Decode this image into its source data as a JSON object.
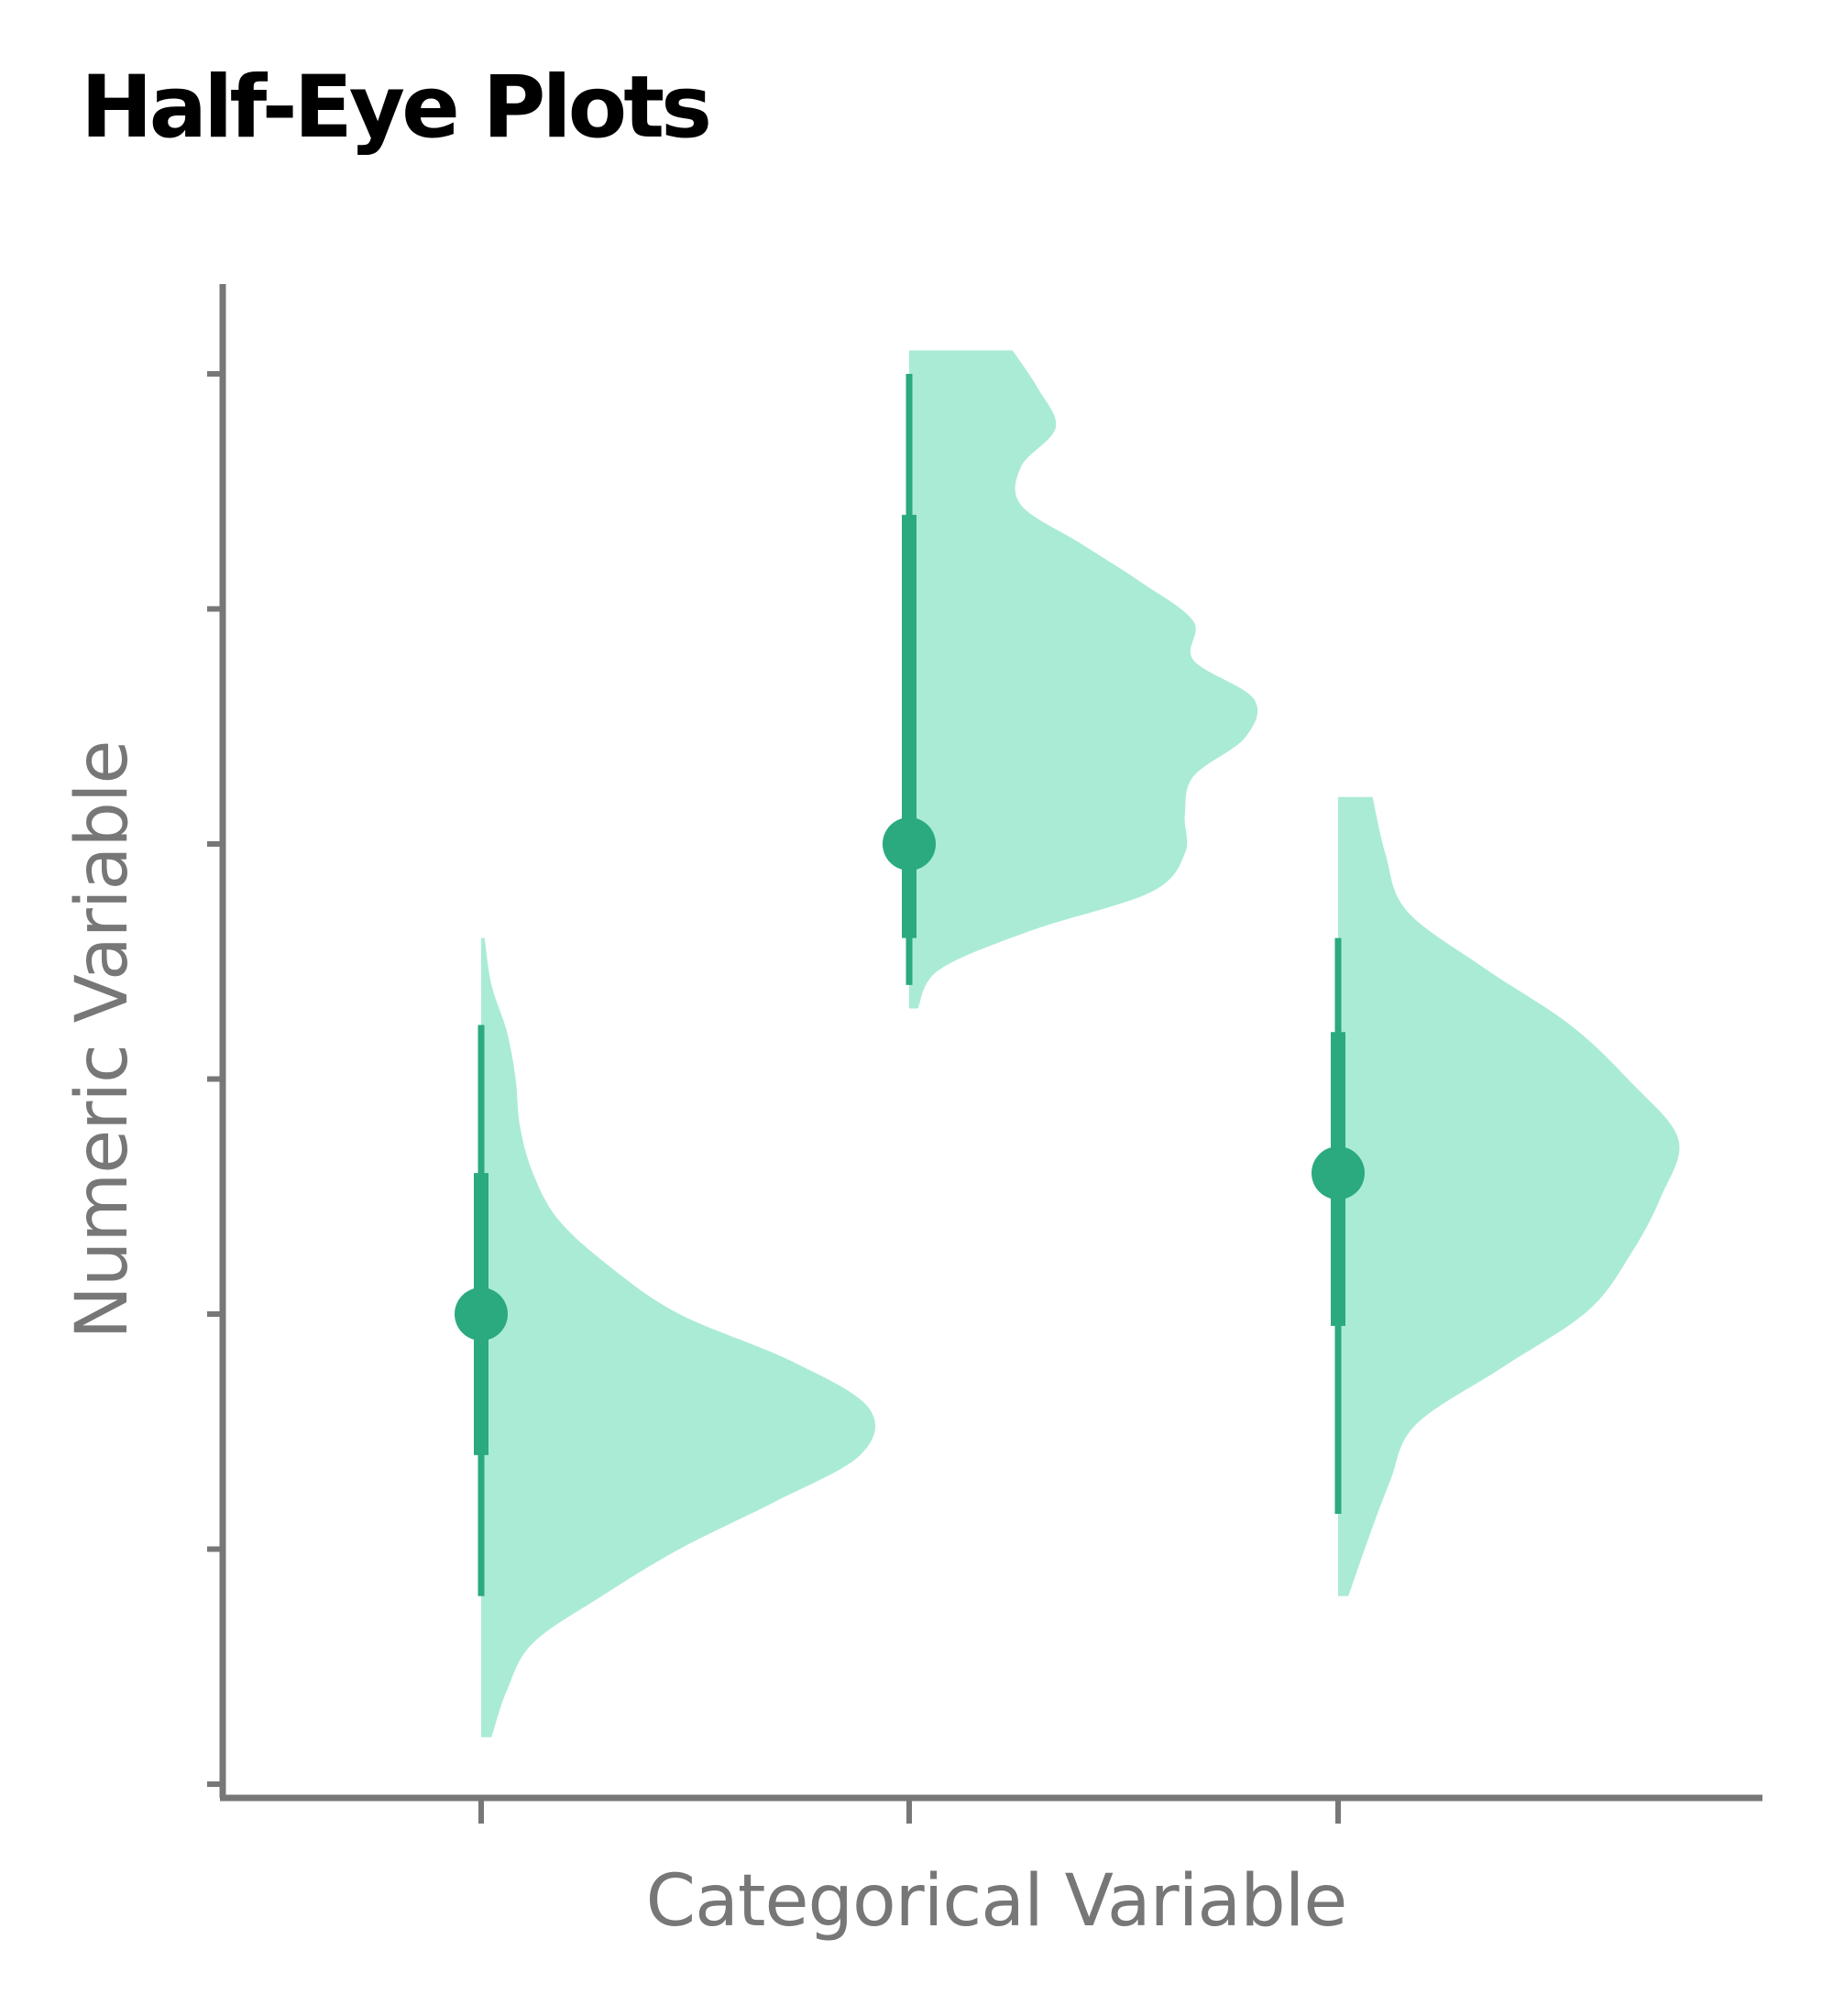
{
  "chart_data": {
    "type": "half-eye",
    "title": "Half-Eye Plots",
    "xlabel": "Categorical Variable",
    "ylabel": "Numeric Variable",
    "categories": [
      "",
      "",
      ""
    ],
    "ylim": [
      0,
      6.5
    ],
    "yticks": [
      0,
      1,
      2,
      3,
      4,
      5,
      6
    ],
    "y_tick_labels_shown": false,
    "x_tick_labels_shown": false,
    "grid": false,
    "colors": {
      "density_fill": "#AAEBD6",
      "interval": "#2AAA7E",
      "axis": "#777777"
    },
    "series": [
      {
        "median": 2.0,
        "interval_66": [
          1.4,
          2.6
        ],
        "interval_95": [
          0.8,
          3.23
        ],
        "range": [
          0.2,
          3.6
        ],
        "density_width": [
          0.12,
          0.3,
          0.6,
          1.4,
          2.3,
          3.4,
          4.4,
          4.5,
          3.6,
          2.3,
          1.5,
          0.9,
          0.6,
          0.45,
          0.4,
          0.3,
          0.12,
          0.04
        ]
      },
      {
        "median": 4.0,
        "interval_66": [
          3.6,
          5.4
        ],
        "interval_95": [
          3.4,
          6.0
        ],
        "range": [
          3.3,
          6.1
        ],
        "density_width": [
          0.1,
          0.35,
          1.4,
          2.8,
          3.2,
          3.2,
          3.3,
          3.9,
          4.0,
          3.3,
          3.3,
          2.7,
          2.0,
          1.3,
          1.3,
          1.7,
          1.5,
          1.2
        ]
      },
      {
        "median": 2.6,
        "interval_66": [
          1.95,
          3.2
        ],
        "interval_95": [
          1.15,
          3.6
        ],
        "range": [
          0.8,
          4.2
        ],
        "density_width": [
          0.12,
          0.35,
          0.6,
          0.9,
          1.9,
          2.9,
          3.4,
          3.75,
          3.95,
          3.4,
          2.7,
          1.7,
          0.8,
          0.55,
          0.4
        ]
      }
    ]
  }
}
